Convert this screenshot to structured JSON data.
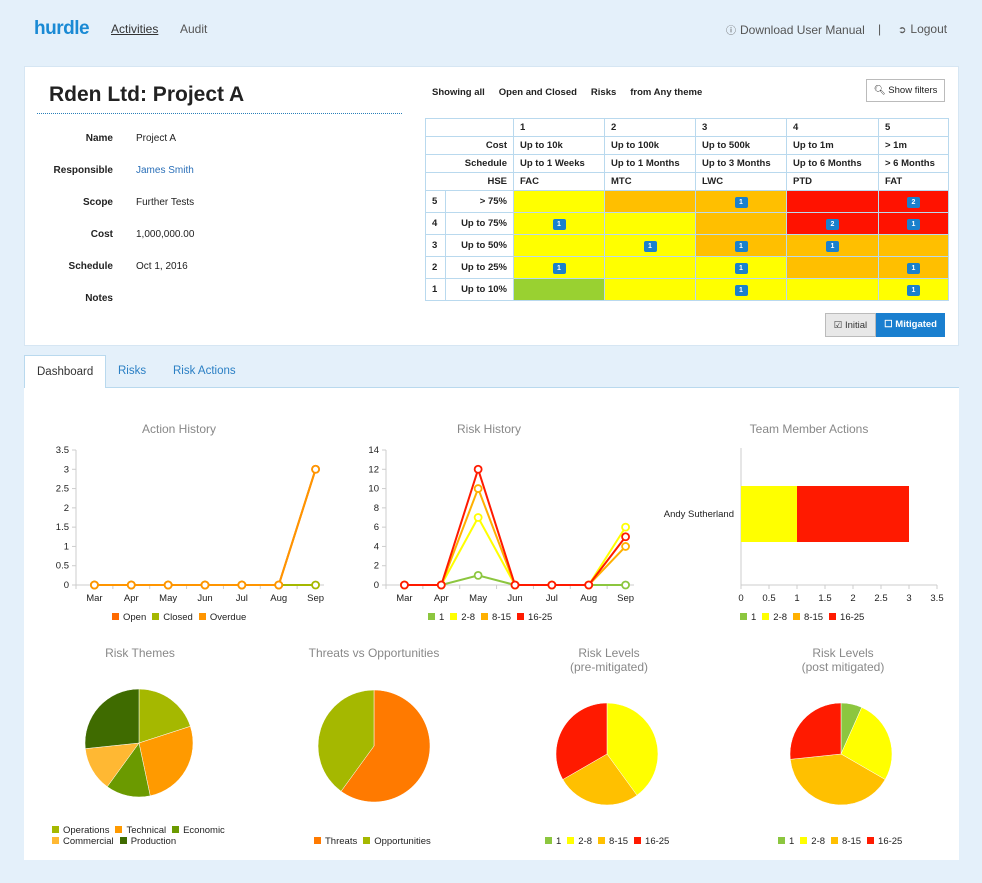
{
  "nav": {
    "logo": "hurdle",
    "links": [
      "Activities",
      "Audit"
    ],
    "download_manual": "Download User Manual",
    "separator": "|",
    "logout": "Logout"
  },
  "project": {
    "title": "Rden Ltd: Project A",
    "fields": [
      {
        "label": "Name",
        "value": "Project A"
      },
      {
        "label": "Responsible",
        "value": "James Smith"
      },
      {
        "label": "Scope",
        "value": "Further Tests"
      },
      {
        "label": "Cost",
        "value": "1,000,000.00"
      },
      {
        "label": "Schedule",
        "value": "Oct 1, 2016"
      },
      {
        "label": "Notes",
        "value": ""
      }
    ]
  },
  "filter": {
    "parts": [
      "Showing all",
      "Open and Closed",
      "Risks",
      "from Any theme"
    ],
    "show_filters": "Show filters"
  },
  "matrix": {
    "impact_numbers": [
      "1",
      "2",
      "3",
      "4",
      "5"
    ],
    "impact_rows": [
      {
        "label": "Cost",
        "values": [
          "Up to 10k",
          "Up to 100k",
          "Up to 500k",
          "Up to 1m",
          "> 1m"
        ]
      },
      {
        "label": "Schedule",
        "values": [
          "Up to 1 Weeks",
          "Up to 1 Months",
          "Up to 3 Months",
          "Up to 6 Months",
          "> 6 Months"
        ]
      },
      {
        "label": "HSE",
        "values": [
          "FAC",
          "MTC",
          "LWC",
          "PTD",
          "FAT"
        ]
      }
    ],
    "likelihood_rows": [
      {
        "num": "5",
        "label": "> 75%",
        "colors": [
          "y",
          "o",
          "o",
          "r",
          "r"
        ],
        "counts": [
          "",
          "",
          "1",
          "",
          "2"
        ]
      },
      {
        "num": "4",
        "label": "Up to 75%",
        "colors": [
          "y",
          "y",
          "o",
          "r",
          "r"
        ],
        "counts": [
          "1",
          "",
          "",
          "2",
          "1"
        ]
      },
      {
        "num": "3",
        "label": "Up to 50%",
        "colors": [
          "y",
          "y",
          "o",
          "o",
          "o"
        ],
        "counts": [
          "",
          "1",
          "1",
          "1",
          ""
        ]
      },
      {
        "num": "2",
        "label": "Up to 25%",
        "colors": [
          "y",
          "y",
          "y",
          "o",
          "o"
        ],
        "counts": [
          "1",
          "",
          "1",
          "",
          "1"
        ]
      },
      {
        "num": "1",
        "label": "Up to 10%",
        "colors": [
          "g",
          "y",
          "y",
          "y",
          "y"
        ],
        "counts": [
          "",
          "",
          "1",
          "",
          "1"
        ]
      }
    ],
    "toggle_initial": "Initial",
    "toggle_mitigated": "Mitigated",
    "toggle_selected": "Mitigated"
  },
  "tabs": [
    "Dashboard",
    "Risks",
    "Risk Actions"
  ],
  "active_tab": "Dashboard",
  "chart_data": [
    {
      "id": "action_history",
      "type": "line",
      "title": "Action History",
      "x": [
        "Mar",
        "Apr",
        "May",
        "Jun",
        "Jul",
        "Aug",
        "Sep"
      ],
      "ylim": [
        0,
        3.5
      ],
      "yticks": [
        "0",
        "0.5",
        "1",
        "1.5",
        "2",
        "2.5",
        "3",
        "3.5"
      ],
      "series": [
        {
          "name": "Open",
          "color": "#ff6a00",
          "values": [
            0,
            0,
            0,
            0,
            0,
            0,
            3
          ]
        },
        {
          "name": "Closed",
          "color": "#a5b800",
          "values": [
            0,
            0,
            0,
            0,
            0,
            0,
            0
          ]
        },
        {
          "name": "Overdue",
          "color": "#ff9500",
          "values": [
            0,
            0,
            0,
            0,
            0,
            0,
            3
          ]
        }
      ]
    },
    {
      "id": "risk_history",
      "type": "line",
      "title": "Risk History",
      "x": [
        "Mar",
        "Apr",
        "May",
        "Jun",
        "Jul",
        "Aug",
        "Sep"
      ],
      "ylim": [
        0,
        14
      ],
      "yticks": [
        "0",
        "2",
        "4",
        "6",
        "8",
        "10",
        "12",
        "14"
      ],
      "series": [
        {
          "name": "1",
          "color": "#8cc63f",
          "values": [
            0,
            0,
            1,
            0,
            0,
            0,
            0
          ]
        },
        {
          "name": "2-8",
          "color": "#ffff00",
          "values": [
            0,
            0,
            7,
            0,
            0,
            0,
            6
          ]
        },
        {
          "name": "8-15",
          "color": "#ffb000",
          "values": [
            0,
            0,
            10,
            0,
            0,
            0,
            4
          ]
        },
        {
          "name": "16-25",
          "color": "#ff1a00",
          "values": [
            0,
            0,
            12,
            0,
            0,
            0,
            5
          ]
        }
      ]
    },
    {
      "id": "team_member_actions",
      "type": "bar",
      "orientation": "horizontal",
      "stacked": true,
      "title": "Team Member Actions",
      "categories": [
        "Andy Sutherland"
      ],
      "xlim": [
        0,
        3.5
      ],
      "xticks": [
        "0",
        "0.5",
        "1",
        "1.5",
        "2",
        "2.5",
        "3",
        "3.5"
      ],
      "series": [
        {
          "name": "1",
          "color": "#8cc63f",
          "values": [
            0
          ]
        },
        {
          "name": "2-8",
          "color": "#ffff00",
          "values": [
            1
          ]
        },
        {
          "name": "8-15",
          "color": "#ffb000",
          "values": [
            0
          ]
        },
        {
          "name": "16-25",
          "color": "#ff1a00",
          "values": [
            2
          ]
        }
      ]
    },
    {
      "id": "risk_themes",
      "type": "pie",
      "title": "Risk Themes",
      "slices": [
        {
          "label": "Operations",
          "value": 3,
          "color": "#a5b800"
        },
        {
          "label": "Technical",
          "value": 4,
          "color": "#ff9a00"
        },
        {
          "label": "Economic",
          "value": 2,
          "color": "#6b9a00"
        },
        {
          "label": "Commercial",
          "value": 2,
          "color": "#ffb833"
        },
        {
          "label": "Production",
          "value": 4,
          "color": "#3f6b00"
        }
      ]
    },
    {
      "id": "threats_vs_opportunities",
      "type": "pie",
      "title": "Threats vs Opportunities",
      "slices": [
        {
          "label": "Threats",
          "value": 9,
          "color": "#ff7a00"
        },
        {
          "label": "Opportunities",
          "value": 6,
          "color": "#a5b800"
        }
      ]
    },
    {
      "id": "risk_levels_pre",
      "type": "pie",
      "title": "Risk Levels",
      "subtitle": "(pre-mitigated)",
      "slices": [
        {
          "label": "1",
          "value": 0,
          "color": "#8cc63f"
        },
        {
          "label": "2-8",
          "value": 6,
          "color": "#ffff00"
        },
        {
          "label": "8-15",
          "value": 4,
          "color": "#ffc000"
        },
        {
          "label": "16-25",
          "value": 5,
          "color": "#ff1a00"
        }
      ]
    },
    {
      "id": "risk_levels_post",
      "type": "pie",
      "title": "Risk Levels",
      "subtitle": "(post mitigated)",
      "slices": [
        {
          "label": "1",
          "value": 1,
          "color": "#8cc63f"
        },
        {
          "label": "2-8",
          "value": 4,
          "color": "#ffff00"
        },
        {
          "label": "8-15",
          "value": 6,
          "color": "#ffc000"
        },
        {
          "label": "16-25",
          "value": 4,
          "color": "#ff1a00"
        }
      ]
    }
  ]
}
